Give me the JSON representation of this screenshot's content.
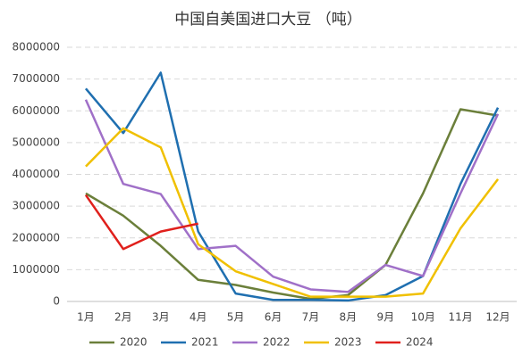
{
  "chart_data": {
    "type": "line",
    "title": "中国自美国进口大豆 （吨）",
    "categories": [
      "1月",
      "2月",
      "3月",
      "4月",
      "5月",
      "6月",
      "7月",
      "8月",
      "9月",
      "10月",
      "11月",
      "12月"
    ],
    "series": [
      {
        "name": "2020",
        "color": "#6b7f3a",
        "values": [
          3400000,
          2700000,
          1750000,
          680000,
          520000,
          280000,
          80000,
          200000,
          1150000,
          3400000,
          6050000,
          5850000
        ]
      },
      {
        "name": "2021",
        "color": "#1f6fb0",
        "values": [
          6700000,
          5300000,
          7200000,
          2200000,
          250000,
          50000,
          50000,
          30000,
          200000,
          800000,
          3700000,
          6100000
        ]
      },
      {
        "name": "2022",
        "color": "#a070c8",
        "values": [
          6350000,
          3700000,
          3380000,
          1650000,
          1750000,
          780000,
          380000,
          300000,
          1150000,
          800000,
          3400000,
          5900000
        ]
      },
      {
        "name": "2023",
        "color": "#f0c000",
        "values": [
          4250000,
          5450000,
          4850000,
          1800000,
          950000,
          550000,
          150000,
          150000,
          150000,
          250000,
          2300000,
          3850000
        ]
      },
      {
        "name": "2024",
        "color": "#e0201c",
        "values": [
          3350000,
          1650000,
          2200000,
          2450000,
          null,
          null,
          null,
          null,
          null,
          null,
          null,
          null
        ]
      }
    ],
    "ylim": [
      0,
      8000000
    ],
    "yticks": [
      0,
      1000000,
      2000000,
      3000000,
      4000000,
      5000000,
      6000000,
      7000000,
      8000000
    ],
    "grid": true,
    "legend": "bottom"
  }
}
